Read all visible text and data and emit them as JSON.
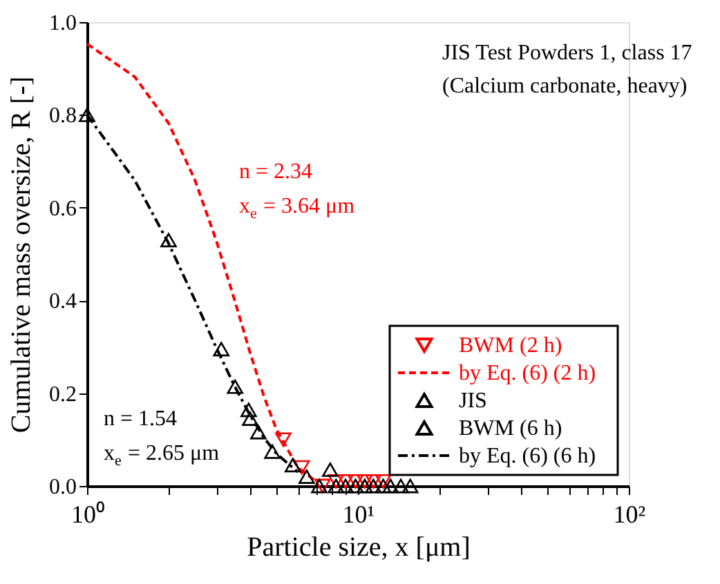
{
  "chart_data": {
    "type": "scatter",
    "xlabel": "Particle size, x [μm]",
    "ylabel": "Cumulative mass oversize, R [-]",
    "log": "x",
    "xlim": [
      1,
      100
    ],
    "xticks": [
      {
        "value": 1,
        "label": "10⁰"
      },
      {
        "value": 2,
        "label": null
      },
      {
        "value": 3,
        "label": null
      },
      {
        "value": 4,
        "label": null
      },
      {
        "value": 5,
        "label": null
      },
      {
        "value": 6,
        "label": null
      },
      {
        "value": 7,
        "label": null
      },
      {
        "value": 8,
        "label": null
      },
      {
        "value": 9,
        "label": null
      },
      {
        "value": 10,
        "label": "10¹"
      },
      {
        "value": 20,
        "label": null
      },
      {
        "value": 30,
        "label": null
      },
      {
        "value": 40,
        "label": null
      },
      {
        "value": 50,
        "label": null
      },
      {
        "value": 60,
        "label": null
      },
      {
        "value": 70,
        "label": null
      },
      {
        "value": 80,
        "label": null
      },
      {
        "value": 90,
        "label": null
      },
      {
        "value": 100,
        "label": "10²"
      }
    ],
    "ylim": [
      0,
      1
    ],
    "yticks": [
      {
        "value": 0,
        "label": "0.0"
      },
      {
        "value": 0.2,
        "label": "0.2"
      },
      {
        "value": 0.4,
        "label": "0.4"
      },
      {
        "value": 0.6,
        "label": "0.6"
      },
      {
        "value": 0.8,
        "label": "0.8"
      },
      {
        "value": 1,
        "label": "1.0"
      }
    ],
    "grid": false,
    "legend": "bottom right",
    "annotations": [
      "JIS Test Powders 1, class 17",
      "(Calcium carbonate, heavy)",
      "n = 2.34",
      "x$_{e}$ = 3.64 μm",
      "n = 1.54",
      "x$_{e}$ = 2.65 μm"
    ],
    "series": [
      {
        "name": "BWM (2 h)",
        "marker": "triangle-down",
        "color": "#ff0000",
        "x": [
          5.3,
          6.2,
          7.4,
          8.3,
          9.0,
          9.8,
          10.6,
          11.4,
          12.4
        ],
        "values": [
          0.1,
          0.04,
          0.0,
          0.01,
          0.01,
          0.01,
          0.01,
          0.01,
          0.01
        ]
      },
      {
        "name": "by Eq. (6) (2 h)",
        "type": "line",
        "line_style": "dashed",
        "color": "#ff0000",
        "x": [
          1,
          1.5,
          2,
          2.5,
          3,
          3.5,
          4,
          4.5,
          5,
          6,
          7
        ],
        "values": [
          0.953,
          0.882,
          0.782,
          0.66,
          0.529,
          0.402,
          0.287,
          0.193,
          0.122,
          0.04,
          0.01
        ]
      },
      {
        "name": "JIS",
        "marker": "triangle",
        "color": "#000000",
        "x": [
          1,
          2,
          4,
          7.9
        ],
        "values": [
          0.8,
          0.53,
          0.145,
          0.035
        ]
      },
      {
        "name": "BWM (6 h)",
        "marker": "triangle",
        "color": "#000000",
        "x": [
          3.13,
          3.52,
          3.95,
          4.29,
          4.83,
          5.75,
          6.47,
          7.2,
          8.3,
          9.0,
          9.8,
          10.6,
          11.4,
          12.4,
          13.2,
          14.4,
          15.6
        ],
        "values": [
          0.295,
          0.214,
          0.164,
          0.116,
          0.074,
          0.045,
          0.02,
          0.0,
          0.0,
          0.0,
          0.0,
          0.0,
          0.0,
          0.0,
          0.0,
          0.0,
          0.0
        ]
      },
      {
        "name": "by Eq. (6) (6 h)",
        "type": "line",
        "line_style": "dashdot",
        "color": "#000000",
        "x": [
          1,
          1.5,
          2,
          2.5,
          3,
          3.5,
          4,
          4.5,
          5,
          6
        ],
        "values": [
          0.8,
          0.659,
          0.523,
          0.401,
          0.298,
          0.216,
          0.152,
          0.104,
          0.07,
          0.03
        ]
      }
    ]
  }
}
